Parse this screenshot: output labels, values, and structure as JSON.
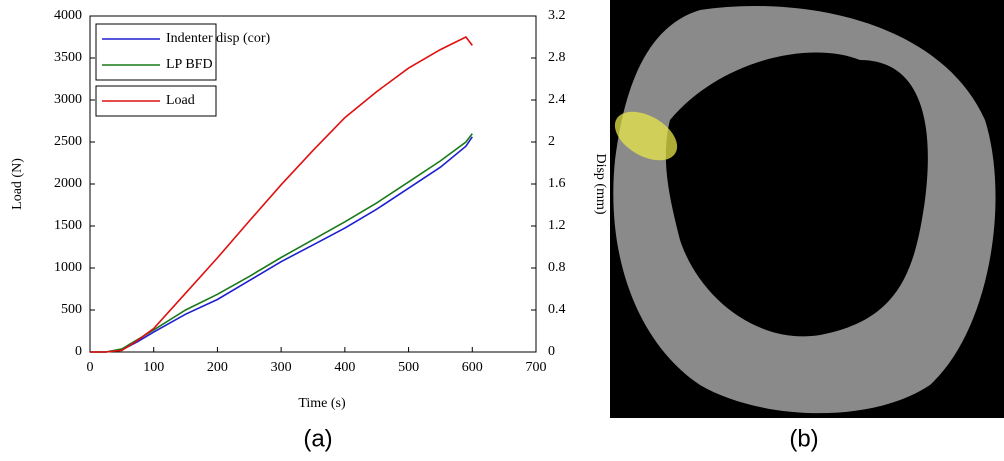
{
  "chart_data": {
    "type": "line",
    "x": [
      0,
      25,
      50,
      75,
      100,
      150,
      200,
      250,
      300,
      350,
      400,
      450,
      500,
      550,
      590,
      600
    ],
    "series": [
      {
        "name": "Indenter disp (cor)",
        "color": "#1f1fd0",
        "axis": "y2",
        "values": [
          0,
          0,
          0.02,
          0.1,
          0.19,
          0.36,
          0.5,
          0.68,
          0.86,
          1.02,
          1.18,
          1.36,
          1.56,
          1.76,
          1.96,
          2.05
        ]
      },
      {
        "name": "LP BFD",
        "color": "#1a7a1a",
        "axis": "y2",
        "values": [
          0,
          0,
          0.03,
          0.12,
          0.21,
          0.4,
          0.55,
          0.72,
          0.9,
          1.07,
          1.24,
          1.42,
          1.62,
          1.82,
          2.0,
          2.08
        ]
      },
      {
        "name": "Load",
        "color": "#e01010",
        "values": [
          0,
          0,
          20,
          140,
          280,
          700,
          1120,
          1560,
          1990,
          2400,
          2790,
          3100,
          3380,
          3600,
          3750,
          3650
        ]
      }
    ],
    "xlabel": "Time (s)",
    "ylabel": "Load (N)",
    "y2label": "Disp (mm)",
    "xlim": [
      0,
      700
    ],
    "xticks": [
      0,
      100,
      200,
      300,
      400,
      500,
      600,
      700
    ],
    "ylim": [
      0,
      4000
    ],
    "yticks": [
      0,
      500,
      1000,
      1500,
      2000,
      2500,
      3000,
      3500,
      4000
    ],
    "y2lim": [
      0,
      3.2
    ],
    "y2ticks": [
      0,
      0.4,
      0.8,
      1.2,
      1.6,
      2,
      2.4,
      2.8,
      3.2
    ],
    "grid": false
  },
  "panels": [
    "(a)",
    "(b)"
  ]
}
